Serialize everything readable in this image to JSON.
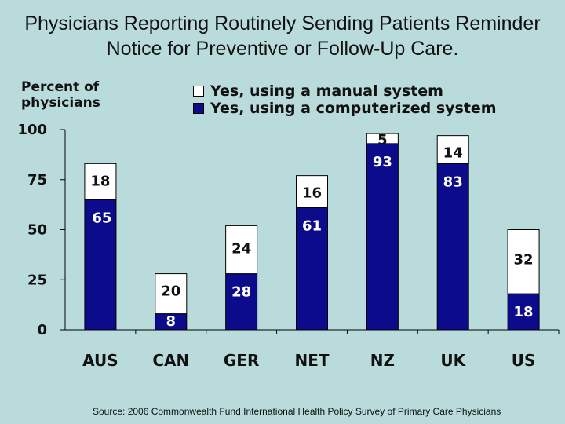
{
  "chart_data": {
    "type": "bar",
    "stacked": true,
    "title": "Physicians Reporting Routinely Sending Patients Reminder Notice for Preventive or Follow-Up Care.",
    "ylabel": "Percent of physicians",
    "ylim": [
      0,
      100
    ],
    "yticks": [
      "100",
      "75",
      "50",
      "25",
      "0"
    ],
    "categories": [
      "AUS",
      "CAN",
      "GER",
      "NET",
      "NZ",
      "UK",
      "US"
    ],
    "series": [
      {
        "name": "Yes, using a computerized system",
        "values": [
          65,
          8,
          28,
          61,
          93,
          83,
          18
        ],
        "color": "#0b0b8c"
      },
      {
        "name": "Yes, using a manual system",
        "values": [
          18,
          20,
          24,
          16,
          5,
          14,
          32
        ],
        "color": "#ffffff"
      }
    ],
    "legend_position": "top"
  },
  "source": "Source: 2006 Commonwealth Fund International Health Policy Survey of Primary Care Physicians"
}
